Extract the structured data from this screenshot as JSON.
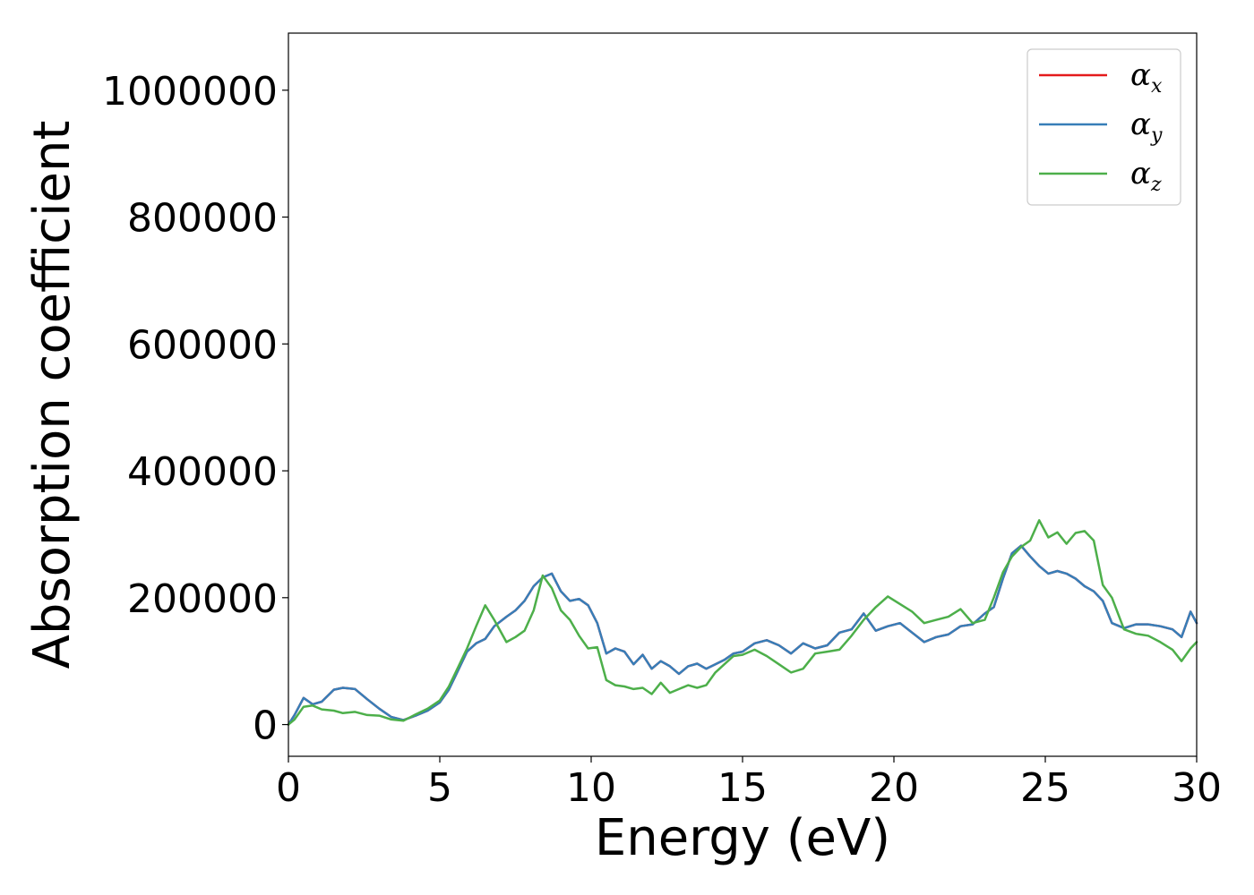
{
  "chart_data": {
    "type": "line",
    "xlabel": "Energy (eV)",
    "ylabel": "Absorption coefficient",
    "xlim": [
      0,
      30
    ],
    "ylim": [
      -50000,
      1090000
    ],
    "xticks": [
      0,
      5,
      10,
      15,
      20,
      25,
      30
    ],
    "xtick_labels": [
      "0",
      "5",
      "10",
      "15",
      "20",
      "25",
      "30"
    ],
    "yticks": [
      0,
      200000,
      400000,
      600000,
      800000,
      1000000
    ],
    "ytick_labels": [
      "0",
      "200000",
      "400000",
      "600000",
      "800000",
      "1000000"
    ],
    "grid": false,
    "legend_position": "top-right",
    "series": [
      {
        "name": "α_x",
        "label_base": "α",
        "label_sub": "x",
        "color": "#e41a1c",
        "x": [
          0,
          0.2,
          0.5,
          0.8,
          1.1,
          1.5,
          1.8,
          2.2,
          2.6,
          3.0,
          3.4,
          3.8,
          4.2,
          4.6,
          5.0,
          5.3,
          5.6,
          5.9,
          6.2,
          6.5,
          6.8,
          7.2,
          7.5,
          7.8,
          8.1,
          8.4,
          8.7,
          9.0,
          9.3,
          9.6,
          9.9,
          10.2,
          10.5,
          10.8,
          11.1,
          11.4,
          11.7,
          12.0,
          12.3,
          12.6,
          12.9,
          13.2,
          13.5,
          13.8,
          14.1,
          14.4,
          14.7,
          15.0,
          15.4,
          15.8,
          16.2,
          16.6,
          17.0,
          17.4,
          17.8,
          18.2,
          18.6,
          19.0,
          19.4,
          19.8,
          20.2,
          20.6,
          21.0,
          21.4,
          21.8,
          22.2,
          22.6,
          23.0,
          23.3,
          23.6,
          23.9,
          24.2,
          24.5,
          24.8,
          25.1,
          25.4,
          25.7,
          26.0,
          26.3,
          26.6,
          26.9,
          27.2,
          27.6,
          28.0,
          28.4,
          28.8,
          29.2,
          29.5,
          29.8,
          30.0
        ],
        "y": [
          0,
          15000,
          42000,
          32000,
          36000,
          55000,
          58000,
          56000,
          40000,
          25000,
          12000,
          7000,
          14000,
          22000,
          35000,
          55000,
          85000,
          115000,
          128000,
          135000,
          155000,
          170000,
          180000,
          195000,
          218000,
          232000,
          238000,
          210000,
          195000,
          198000,
          188000,
          160000,
          112000,
          120000,
          115000,
          95000,
          110000,
          88000,
          100000,
          92000,
          80000,
          92000,
          96000,
          88000,
          95000,
          102000,
          112000,
          115000,
          128000,
          133000,
          125000,
          112000,
          128000,
          120000,
          125000,
          145000,
          150000,
          175000,
          148000,
          155000,
          160000,
          145000,
          130000,
          138000,
          142000,
          155000,
          158000,
          175000,
          185000,
          230000,
          270000,
          282000,
          265000,
          250000,
          238000,
          242000,
          238000,
          230000,
          218000,
          210000,
          195000,
          160000,
          152000,
          158000,
          158000,
          155000,
          150000,
          138000,
          178000,
          160000
        ]
      },
      {
        "name": "α_y",
        "label_base": "α",
        "label_sub": "y",
        "color": "#377eb8",
        "x": [
          0,
          0.2,
          0.5,
          0.8,
          1.1,
          1.5,
          1.8,
          2.2,
          2.6,
          3.0,
          3.4,
          3.8,
          4.2,
          4.6,
          5.0,
          5.3,
          5.6,
          5.9,
          6.2,
          6.5,
          6.8,
          7.2,
          7.5,
          7.8,
          8.1,
          8.4,
          8.7,
          9.0,
          9.3,
          9.6,
          9.9,
          10.2,
          10.5,
          10.8,
          11.1,
          11.4,
          11.7,
          12.0,
          12.3,
          12.6,
          12.9,
          13.2,
          13.5,
          13.8,
          14.1,
          14.4,
          14.7,
          15.0,
          15.4,
          15.8,
          16.2,
          16.6,
          17.0,
          17.4,
          17.8,
          18.2,
          18.6,
          19.0,
          19.4,
          19.8,
          20.2,
          20.6,
          21.0,
          21.4,
          21.8,
          22.2,
          22.6,
          23.0,
          23.3,
          23.6,
          23.9,
          24.2,
          24.5,
          24.8,
          25.1,
          25.4,
          25.7,
          26.0,
          26.3,
          26.6,
          26.9,
          27.2,
          27.6,
          28.0,
          28.4,
          28.8,
          29.2,
          29.5,
          29.8,
          30.0
        ],
        "y": [
          0,
          15000,
          42000,
          32000,
          36000,
          55000,
          58000,
          56000,
          40000,
          25000,
          12000,
          7000,
          14000,
          22000,
          35000,
          55000,
          85000,
          115000,
          128000,
          135000,
          155000,
          170000,
          180000,
          195000,
          218000,
          232000,
          238000,
          210000,
          195000,
          198000,
          188000,
          160000,
          112000,
          120000,
          115000,
          95000,
          110000,
          88000,
          100000,
          92000,
          80000,
          92000,
          96000,
          88000,
          95000,
          102000,
          112000,
          115000,
          128000,
          133000,
          125000,
          112000,
          128000,
          120000,
          125000,
          145000,
          150000,
          175000,
          148000,
          155000,
          160000,
          145000,
          130000,
          138000,
          142000,
          155000,
          158000,
          175000,
          185000,
          230000,
          270000,
          282000,
          265000,
          250000,
          238000,
          242000,
          238000,
          230000,
          218000,
          210000,
          195000,
          160000,
          152000,
          158000,
          158000,
          155000,
          150000,
          138000,
          178000,
          160000
        ]
      },
      {
        "name": "α_z",
        "label_base": "α",
        "label_sub": "z",
        "color": "#4daf4a",
        "x": [
          0,
          0.2,
          0.5,
          0.8,
          1.1,
          1.5,
          1.8,
          2.2,
          2.6,
          3.0,
          3.4,
          3.8,
          4.2,
          4.6,
          5.0,
          5.3,
          5.6,
          5.9,
          6.2,
          6.5,
          6.8,
          7.2,
          7.5,
          7.8,
          8.1,
          8.4,
          8.7,
          9.0,
          9.3,
          9.6,
          9.9,
          10.2,
          10.5,
          10.8,
          11.1,
          11.4,
          11.7,
          12.0,
          12.3,
          12.6,
          12.9,
          13.2,
          13.5,
          13.8,
          14.1,
          14.4,
          14.7,
          15.0,
          15.4,
          15.8,
          16.2,
          16.6,
          17.0,
          17.4,
          17.8,
          18.2,
          18.6,
          19.0,
          19.4,
          19.8,
          20.2,
          20.6,
          21.0,
          21.4,
          21.8,
          22.2,
          22.6,
          23.0,
          23.3,
          23.6,
          23.9,
          24.2,
          24.5,
          24.8,
          25.1,
          25.4,
          25.7,
          26.0,
          26.3,
          26.6,
          26.9,
          27.2,
          27.6,
          28.0,
          28.4,
          28.8,
          29.2,
          29.5,
          29.8,
          30.0
        ],
        "y": [
          0,
          8000,
          28000,
          30000,
          24000,
          22000,
          18000,
          20000,
          15000,
          14000,
          8000,
          6000,
          16000,
          25000,
          38000,
          60000,
          90000,
          120000,
          155000,
          188000,
          165000,
          130000,
          138000,
          148000,
          180000,
          235000,
          215000,
          180000,
          165000,
          140000,
          120000,
          122000,
          70000,
          62000,
          60000,
          56000,
          58000,
          48000,
          66000,
          50000,
          56000,
          62000,
          58000,
          62000,
          82000,
          95000,
          108000,
          110000,
          118000,
          108000,
          95000,
          82000,
          88000,
          112000,
          115000,
          118000,
          140000,
          165000,
          185000,
          202000,
          190000,
          178000,
          160000,
          165000,
          170000,
          182000,
          160000,
          165000,
          200000,
          240000,
          265000,
          280000,
          290000,
          322000,
          295000,
          303000,
          285000,
          302000,
          305000,
          290000,
          220000,
          200000,
          150000,
          143000,
          140000,
          130000,
          118000,
          100000,
          120000,
          130000
        ]
      }
    ]
  }
}
